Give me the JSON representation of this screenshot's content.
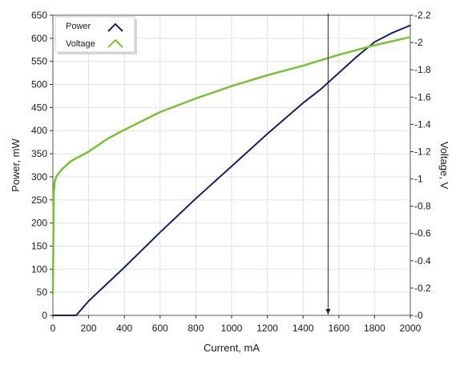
{
  "chart_data": {
    "type": "line",
    "xlabel": "Current, mA",
    "ylabel": "Power, mW",
    "y2label": "Voltage, V",
    "xlim": [
      0,
      2000
    ],
    "ylim": [
      0,
      650
    ],
    "y2lim": [
      0,
      2.2
    ],
    "x_ticks": [
      0,
      200,
      400,
      600,
      800,
      1000,
      1200,
      1400,
      1600,
      1800,
      2000
    ],
    "y_ticks": [
      0,
      50,
      100,
      150,
      200,
      250,
      300,
      350,
      400,
      450,
      500,
      550,
      600,
      650
    ],
    "y2_ticks": [
      0,
      0.2,
      0.4,
      0.6,
      0.8,
      1,
      1.2,
      1.4,
      1.6,
      1.8,
      2,
      2.2
    ],
    "grid": true,
    "legend_position": "top-left",
    "marker_line_x": 1540,
    "series": [
      {
        "name": "Power",
        "axis": "left",
        "color": "#1b1f5e",
        "x": [
          0,
          130,
          200,
          400,
          600,
          800,
          1000,
          1200,
          1400,
          1500,
          1600,
          1700,
          1800,
          1900,
          2000
        ],
        "y": [
          0,
          0,
          31,
          104,
          180,
          253,
          323,
          393,
          460,
          490,
          525,
          560,
          592,
          612,
          628
        ]
      },
      {
        "name": "Voltage",
        "axis": "right",
        "color": "#7ac231",
        "x": [
          0,
          5,
          10,
          20,
          50,
          100,
          200,
          300,
          400,
          600,
          800,
          1000,
          1200,
          1400,
          1600,
          1800,
          2000
        ],
        "y": [
          0.15,
          0.9,
          0.98,
          1.02,
          1.07,
          1.13,
          1.2,
          1.29,
          1.36,
          1.49,
          1.59,
          1.68,
          1.76,
          1.83,
          1.91,
          1.98,
          2.04
        ]
      }
    ]
  }
}
